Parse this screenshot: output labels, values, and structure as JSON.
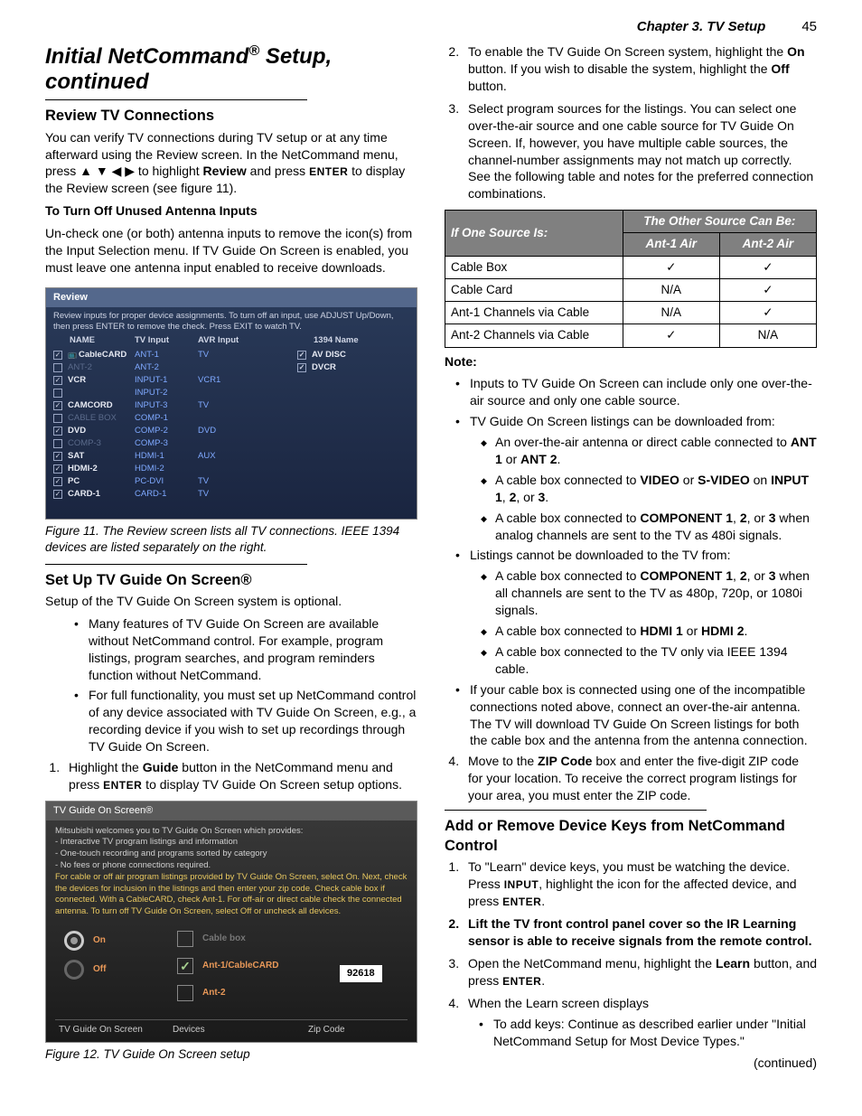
{
  "header": {
    "chapter": "Chapter 3.  TV Setup",
    "pagenum": "45"
  },
  "title": "Initial NetCommand® Setup, continued",
  "left": {
    "h_review": "Review TV Connections",
    "p_review": "You can verify TV connections during TV setup or at any time afterward using the Review screen.  In the NetCommand menu, press ",
    "p_review_b": " to highlight ",
    "p_review_word": "Review",
    "p_review_c": " and press ",
    "enter": "ENTER",
    "p_review_d": " to display the Review screen (see figure 11).",
    "h_turnoff": "To Turn Off Unused Antenna Inputs",
    "p_turnoff": "Un-check one (or both) antenna inputs to remove the icon(s) from the Input Selection menu.  If TV Guide On Screen is enabled, you must leave one antenna input enabled to receive downloads.",
    "fig11": {
      "title": "Review",
      "desc": "Review inputs for proper device assignments. To turn off an input, use ADJUST Up/Down, then press ENTER to remove the check.  Press EXIT to watch TV.",
      "headers": {
        "name": "NAME",
        "tv": "TV Input",
        "avr": "AVR Input",
        "i1394": "1394 Name"
      },
      "rows": [
        {
          "chk": true,
          "name": "CableCARD",
          "tv": "ANT-1",
          "avr": "TV",
          "dim": false,
          "tvicon": true
        },
        {
          "chk": false,
          "name": "ANT-2",
          "tv": "ANT-2",
          "avr": "",
          "dim": true
        },
        {
          "chk": true,
          "name": "VCR",
          "tv": "INPUT-1",
          "avr": "VCR1",
          "dim": false
        },
        {
          "chk": false,
          "name": "",
          "tv": "INPUT-2",
          "avr": "",
          "dim": true
        },
        {
          "chk": true,
          "name": "CAMCORD",
          "tv": "INPUT-3",
          "avr": "TV",
          "dim": false
        },
        {
          "chk": false,
          "name": "CABLE BOX",
          "tv": "COMP-1",
          "avr": "",
          "dim": true
        },
        {
          "chk": true,
          "name": "DVD",
          "tv": "COMP-2",
          "avr": "DVD",
          "dim": false
        },
        {
          "chk": false,
          "name": "COMP-3",
          "tv": "COMP-3",
          "avr": "",
          "dim": true
        },
        {
          "chk": true,
          "name": "SAT",
          "tv": "HDMI-1",
          "avr": "AUX",
          "dim": false
        },
        {
          "chk": true,
          "name": "HDMI-2",
          "tv": "HDMI-2",
          "avr": "",
          "dim": false
        },
        {
          "chk": true,
          "name": "PC",
          "tv": "PC-DVI",
          "avr": "TV",
          "dim": false
        },
        {
          "chk": true,
          "name": "CARD-1",
          "tv": "CARD-1",
          "avr": "TV",
          "dim": false
        }
      ],
      "rows1394": [
        {
          "chk": true,
          "name": "AV DISC"
        },
        {
          "chk": true,
          "name": "DVCR"
        }
      ]
    },
    "cap11": "Figure 11.  The Review screen lists all TV connections.  IEEE 1394 devices are listed separately on the right.",
    "h_setup": "Set Up TV Guide On Screen®",
    "p_setup1": "Setup of the TV Guide On Screen system is optional.",
    "li_setup1": "Many features of TV Guide On Screen are available without NetCommand control.  For example, program listings, program searches, and program reminders function without NetCommand.",
    "li_setup2": "For full functionality, you must set up NetCommand control of any device associated with TV Guide On Screen, e.g., a recording device if you wish to set up recordings through TV Guide On Screen.",
    "ol1_a": "Highlight the ",
    "ol1_b": "Guide",
    "ol1_c": " button in the NetCommand menu and press ",
    "ol1_d": " to display TV Guide On Screen setup options.",
    "fig12": {
      "title": "TV Guide On Screen®",
      "line1": "Mitsubishi welcomes you to TV Guide On Screen which provides:",
      "line2": "- Interactive TV program listings and information",
      "line3": "- One-touch recording and programs sorted by category",
      "line4": "- No fees or phone connections required.",
      "yellow": "For cable or off air program listings provided by TV Guide On Screen, select On.  Next, check the devices for inclusion in the listings and then enter your zip code.  Check cable box if connected.  With a CableCARD, check Ant-1.  For off-air or direct cable check the connected antenna.  To turn off TV Guide On Screen, select Off or uncheck all devices.",
      "on": "On",
      "off": "Off",
      "opt1": "Cable box",
      "opt2": "Ant-1/CableCARD",
      "opt3": "Ant-2",
      "zip": "92618",
      "f1": "TV Guide On Screen",
      "f2": "Devices",
      "f3": "Zip Code"
    },
    "cap12": "Figure 12.  TV Guide On Screen setup"
  },
  "right": {
    "ol2_a": "To enable the TV Guide On Screen system, highlight the ",
    "ol2_on": "On",
    "ol2_b": " button.  If you wish to disable the system, highlight the ",
    "ol2_off": "Off",
    "ol2_c": " button.",
    "ol3": "Select program sources for the listings.  You can select one over-the-air source and one cable source for TV Guide On Screen.  If, however, you have multiple cable sources, the channel-number assignments may not match up correctly.  See the following table and notes for the preferred connection combinations.",
    "tab": {
      "h1": "If One Source Is:",
      "h2": "The Other Source Can Be:",
      "h2a": "Ant-1 Air",
      "h2b": "Ant-2 Air",
      "rows": [
        {
          "a": "Cable Box",
          "b": "✓",
          "c": "✓"
        },
        {
          "a": "Cable Card",
          "b": "N/A",
          "c": "✓"
        },
        {
          "a": "Ant-1 Channels via Cable",
          "b": "N/A",
          "c": "✓"
        },
        {
          "a": "Ant-2 Channels via Cable",
          "b": "✓",
          "c": "N/A"
        }
      ]
    },
    "note": "Note:",
    "nb1": "Inputs to TV Guide On Screen can include only one over-the-air source and only one cable source.",
    "nb2": "TV Guide On Screen listings can be downloaded from:",
    "nb2a_a": "An over-the-air antenna or direct cable connected to ",
    "nb2a_b": "ANT 1",
    "nb2a_c": " or ",
    "nb2a_d": "ANT 2",
    "nb2a_e": ".",
    "nb2b_a": "A cable box connected to ",
    "nb2b_b": "VIDEO",
    "nb2b_c": " or ",
    "nb2b_d": "S-VIDEO",
    "nb2b_e": " on ",
    "nb2b_f": "INPUT 1",
    "nb2b_g": ", ",
    "nb2b_h": "2",
    "nb2b_i": ", or ",
    "nb2b_j": "3",
    "nb2b_k": ".",
    "nb2c_a": "A cable box connected to ",
    "nb2c_b": "COMPONENT 1",
    "nb2c_c": ", ",
    "nb2c_d": "2",
    "nb2c_e": ", or ",
    "nb2c_f": "3",
    "nb2c_g": " when analog channels are sent to the TV as 480i signals.",
    "nb3": "Listings cannot be downloaded to the TV from:",
    "nb3a_a": "A cable box connected to ",
    "nb3a_b": "COMPONENT 1",
    "nb3a_c": ", ",
    "nb3a_d": "2",
    "nb3a_e": ", or ",
    "nb3a_f": "3",
    "nb3a_g": " when all channels are sent to the TV as 480p, 720p, or 1080i signals.",
    "nb3b_a": "A cable box connected to ",
    "nb3b_b": "HDMI 1",
    "nb3b_c": " or ",
    "nb3b_d": "HDMI 2",
    "nb3b_e": ".",
    "nb3c": "A cable box connected to the TV only via IEEE 1394 cable.",
    "nb4": "If your cable box is connected using one of the incompatible connections noted above, connect an over-the-air antenna.  The TV will download TV Guide On Screen listings for both the cable box and the antenna from the antenna connection.",
    "ol4_a": "Move to the ",
    "ol4_b": "ZIP Code",
    "ol4_c": " box and enter the five-digit ZIP code for your location.  To receive the correct program listings for your area, you must enter the ZIP code.",
    "h_add": "Add or Remove Device Keys from NetCommand Control",
    "add1_a": "To \"Learn\" device keys, you must be watching the device.  Press ",
    "add1_b": "INPUT",
    "add1_c": ", highlight the icon for the affected device, and press ",
    "add2": "Lift the TV front control panel cover so the IR Learning sensor is able to receive signals from the remote control.",
    "add3_a": "Open the NetCommand menu, highlight the ",
    "add3_b": "Learn",
    "add3_c": " button, and press ",
    "add4": "When the Learn screen displays",
    "add4a": "To add keys:  Continue as described earlier under \"Initial NetCommand Setup for Most Device Types.\"",
    "cont": "(continued)"
  }
}
